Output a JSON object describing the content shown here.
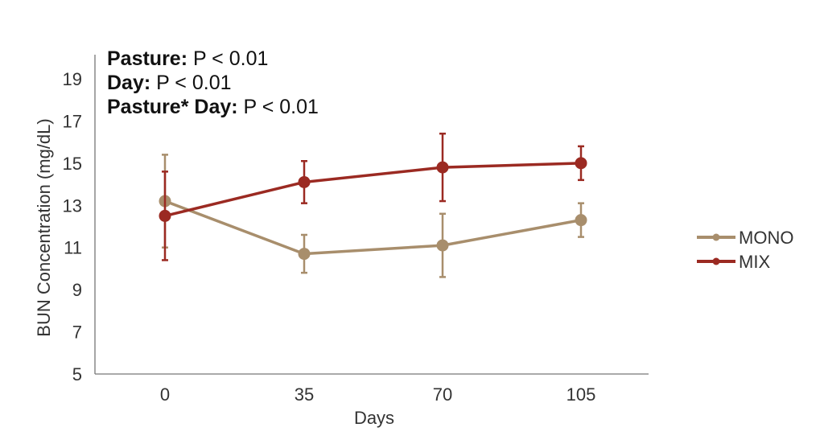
{
  "annotations": [
    {
      "label": "Pasture:",
      "value": "P < 0.01"
    },
    {
      "label": "Day:",
      "value": "P < 0.01"
    },
    {
      "label": "Pasture* Day:",
      "value": "P < 0.01"
    }
  ],
  "chart_data": {
    "type": "line",
    "title": "",
    "xlabel": "Days",
    "ylabel": "BUN Concentration (mg/dL)",
    "categories": [
      "0",
      "35",
      "70",
      "105"
    ],
    "yticks": [
      "5",
      "7",
      "9",
      "11",
      "13",
      "15",
      "17",
      "19"
    ],
    "ylim": [
      5,
      20
    ],
    "grid": false,
    "legend_position": "right",
    "error_bars": true,
    "series": [
      {
        "name": "MONO",
        "color": "#a88e6c",
        "values": [
          13.2,
          10.7,
          11.1,
          12.3
        ],
        "error": [
          2.2,
          0.9,
          1.5,
          0.8
        ]
      },
      {
        "name": "MIX",
        "color": "#9b2a22",
        "values": [
          12.5,
          14.1,
          14.8,
          15.0
        ],
        "error": [
          2.1,
          1.0,
          1.6,
          0.8
        ]
      }
    ]
  }
}
